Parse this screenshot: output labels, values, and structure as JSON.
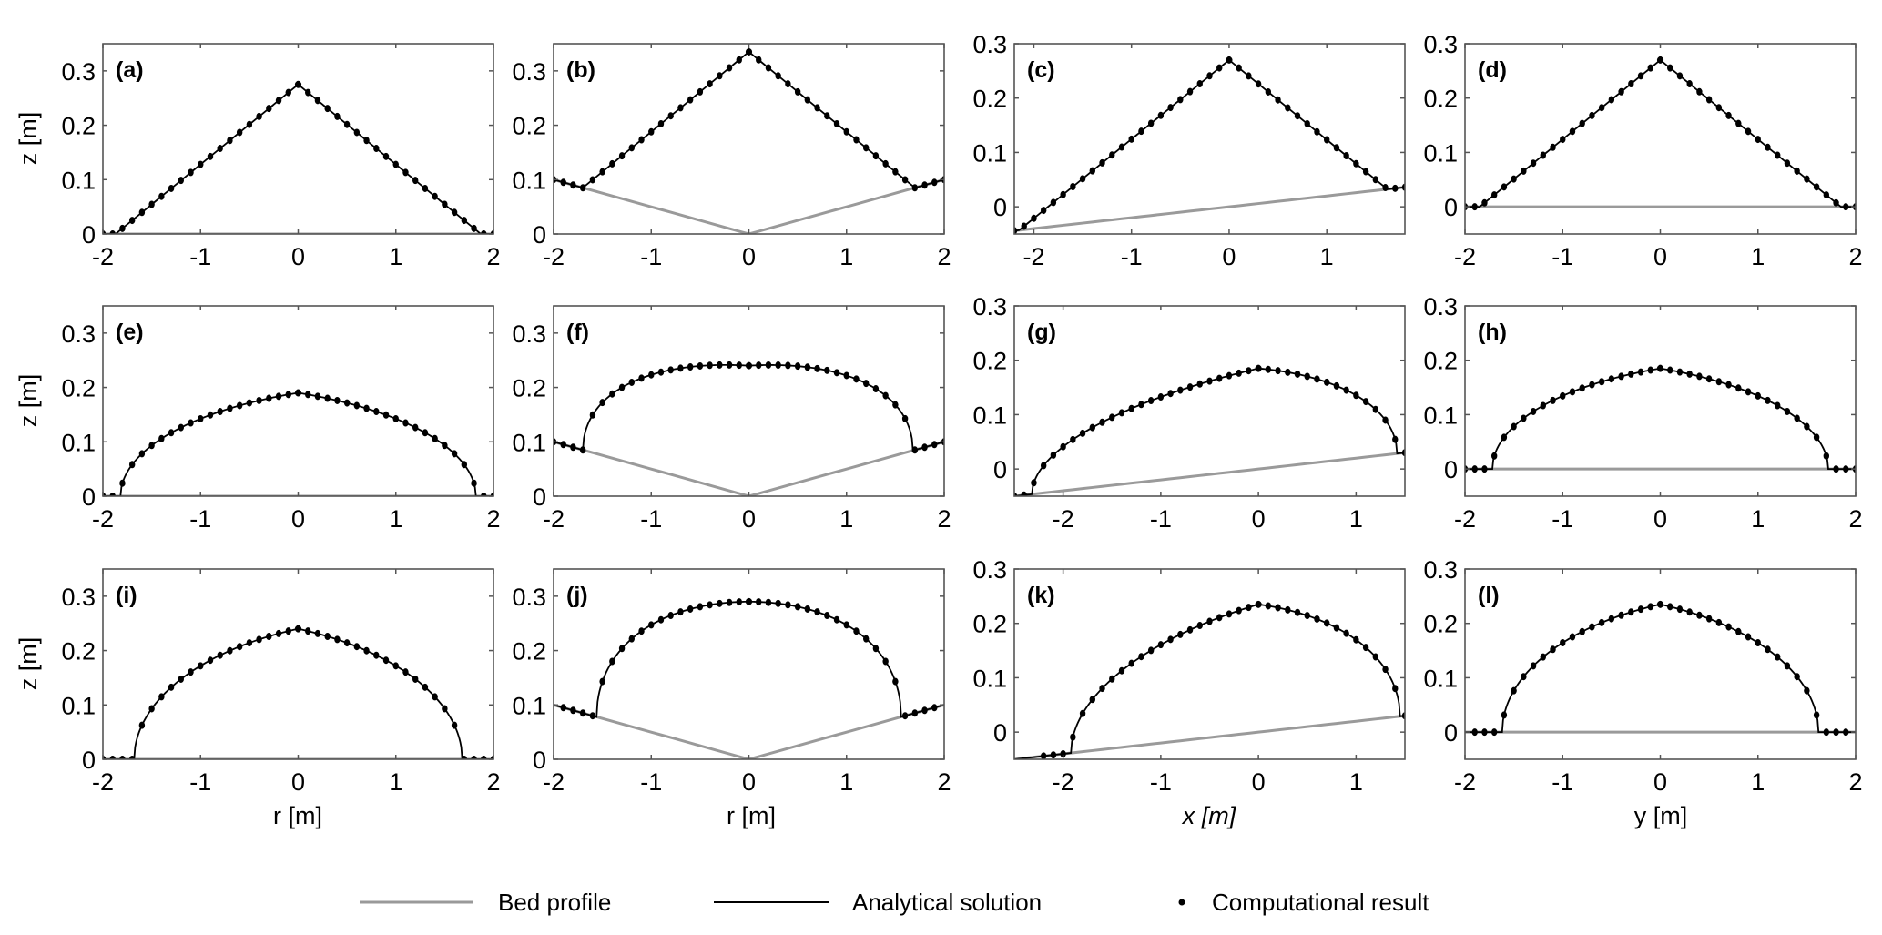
{
  "chart_data": {
    "type": "line",
    "legend": {
      "placement": "bottom-center",
      "entries": [
        {
          "label": "Bed profile",
          "style": "line",
          "color": "#999999"
        },
        {
          "label": "Analytical solution",
          "style": "line",
          "color": "#000000"
        },
        {
          "label": "Computational result",
          "style": "marker",
          "color": "#000000"
        }
      ]
    },
    "ylabel": "z [m]",
    "xlabels": [
      "r [m]",
      "r [m]",
      "x [m]",
      "y [m]"
    ],
    "columns": [
      {
        "xlim": [
          -2,
          2
        ],
        "ylim": [
          0,
          0.35
        ],
        "xticks": [
          -2,
          -1,
          0,
          1,
          2
        ],
        "yticks": [
          0,
          0.1,
          0.2,
          0.3
        ],
        "ytick_labels": [
          "0",
          "0.1",
          "0.2",
          "0.3"
        ]
      },
      {
        "xlim": [
          -2,
          2
        ],
        "ylim": [
          0,
          0.35
        ],
        "xticks": [
          -2,
          -1,
          0,
          1,
          2
        ],
        "yticks": [
          0,
          0.1,
          0.2,
          0.3
        ],
        "ytick_labels": [
          "0",
          "0.1",
          "0.2",
          "0.3"
        ]
      },
      {
        "xlim": [
          -2.5,
          1.5
        ],
        "ylim": [
          -0.05,
          0.3
        ],
        "xticks": [
          -2,
          -1,
          0,
          1
        ],
        "yticks": [
          0,
          0.1,
          0.2,
          0.3
        ],
        "ytick_labels": [
          "0",
          "0.1",
          "0.2",
          "0.3"
        ]
      },
      {
        "xlim": [
          -2,
          2
        ],
        "ylim": [
          -0.05,
          0.3
        ],
        "xticks": [
          -2,
          -1,
          0,
          1,
          2
        ],
        "yticks": [
          0,
          0.1,
          0.2,
          0.3
        ],
        "ytick_labels": [
          "0",
          "0.1",
          "0.2",
          "0.3"
        ]
      }
    ],
    "panels": [
      {
        "label": "(a)",
        "row": 0,
        "col": 0,
        "bed_slope_abs": 0.0,
        "bed_slope": 0.0,
        "peak": 0.275,
        "left": -1.87,
        "right": 1.87,
        "shape": "linear"
      },
      {
        "label": "(b)",
        "row": 0,
        "col": 1,
        "bed_slope_abs": 0.05,
        "bed_slope": 0.0,
        "peak": 0.335,
        "left": -1.7,
        "right": 1.7,
        "shape": "linear"
      },
      {
        "label": "(c)",
        "row": 0,
        "col": 2,
        "xlim": [
          -2.2,
          1.8
        ],
        "bed_slope_abs": 0.0,
        "bed_slope": 0.02,
        "peak": 0.27,
        "left": -2.15,
        "right": 1.62,
        "shape": "linear"
      },
      {
        "label": "(d)",
        "row": 0,
        "col": 3,
        "bed_slope_abs": 0.0,
        "bed_slope": 0.0,
        "peak": 0.27,
        "left": -1.85,
        "right": 1.85,
        "shape": "linear"
      },
      {
        "label": "(e)",
        "row": 1,
        "col": 0,
        "bed_slope_abs": 0.0,
        "bed_slope": 0.0,
        "peak": 0.19,
        "left": -1.82,
        "right": 1.82,
        "shape": "curved"
      },
      {
        "label": "(f)",
        "row": 1,
        "col": 1,
        "bed_slope_abs": 0.05,
        "bed_slope": 0.0,
        "peak": 0.24,
        "left": -1.7,
        "right": 1.68,
        "shape": "curved"
      },
      {
        "label": "(g)",
        "row": 1,
        "col": 2,
        "bed_slope_abs": 0.0,
        "bed_slope": 0.02,
        "peak": 0.185,
        "left": -2.32,
        "right": 1.42,
        "shape": "curved"
      },
      {
        "label": "(h)",
        "row": 1,
        "col": 3,
        "bed_slope_abs": 0.0,
        "bed_slope": 0.0,
        "peak": 0.185,
        "left": -1.72,
        "right": 1.72,
        "shape": "curved"
      },
      {
        "label": "(i)",
        "row": 2,
        "col": 0,
        "bed_slope_abs": 0.0,
        "bed_slope": 0.0,
        "peak": 0.24,
        "left": -1.68,
        "right": 1.68,
        "shape": "curved"
      },
      {
        "label": "(j)",
        "row": 2,
        "col": 1,
        "bed_slope_abs": 0.05,
        "bed_slope": 0.0,
        "peak": 0.29,
        "left": -1.56,
        "right": 1.56,
        "shape": "curved"
      },
      {
        "label": "(k)",
        "row": 2,
        "col": 2,
        "bed_slope_abs": 0.0,
        "bed_slope": 0.02,
        "peak": 0.235,
        "left": -1.92,
        "right": 1.45,
        "shape": "curved"
      },
      {
        "label": "(l)",
        "row": 2,
        "col": 3,
        "bed_slope_abs": 0.0,
        "bed_slope": 0.0,
        "peak": 0.235,
        "left": -1.62,
        "right": 1.62,
        "shape": "curved"
      }
    ],
    "computational_spacing": 0.1
  }
}
